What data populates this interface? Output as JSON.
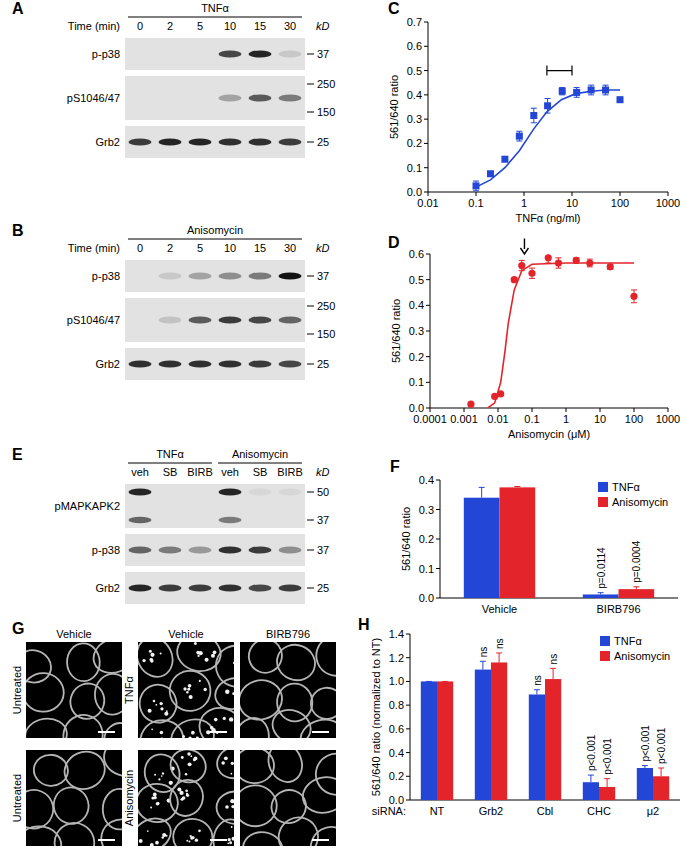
{
  "chart_data": [
    {
      "panel": "C",
      "type": "scatter",
      "x_label": "TNFα (ng/ml)",
      "y_label": "561/640 ratio",
      "log": "x",
      "grid": false,
      "xlim": [
        0.01,
        1000
      ],
      "xticks": [
        0.01,
        0.1,
        1,
        10,
        100,
        1000
      ],
      "ylim": [
        0,
        0.7
      ],
      "yticks": [
        {
          "value": 0,
          "label": "0.0"
        },
        0.1,
        0.2,
        0.3,
        0.4,
        0.5,
        0.6,
        0.7
      ],
      "series": [
        {
          "type": "scatter",
          "marker": "square",
          "color": "#2346d6",
          "x": [
            0.1,
            0.2,
            0.4,
            0.8,
            1.6,
            3.1,
            6.25,
            12.5,
            25,
            50,
            100
          ],
          "values": [
            0.025,
            0.075,
            0.135,
            0.23,
            0.315,
            0.355,
            0.415,
            0.41,
            0.42,
            0.42,
            0.38
          ],
          "errors": [
            0.02,
            0.01,
            0.01,
            0.02,
            0.03,
            0.03,
            0.015,
            0.02,
            0.02,
            0.02,
            0.01
          ]
        },
        {
          "type": "line",
          "line_style": "solid",
          "color": "#2346d6",
          "x": [
            0.1,
            0.2,
            0.4,
            0.8,
            1.6,
            3,
            6,
            12,
            25,
            50,
            100
          ],
          "values": [
            0.02,
            0.05,
            0.1,
            0.17,
            0.26,
            0.33,
            0.38,
            0.405,
            0.415,
            0.42,
            0.42
          ]
        }
      ],
      "bracket": {
        "x": [
          3,
          10
        ],
        "y": 0.5
      }
    },
    {
      "panel": "D",
      "type": "scatter",
      "x_label": "Anisomycin (μM)",
      "y_label": "561/640 ratio",
      "log": "x",
      "grid": false,
      "xlim": [
        0.0001,
        1000
      ],
      "xticks": [
        0.0001,
        0.001,
        0.01,
        0.1,
        1,
        10,
        100,
        1000
      ],
      "ylim": [
        0,
        0.6
      ],
      "yticks": [
        {
          "value": 0,
          "label": "0.0"
        },
        0.1,
        0.2,
        0.3,
        0.4,
        0.5,
        0.6
      ],
      "series": [
        {
          "type": "scatter",
          "marker": "circle",
          "color": "#e3242b",
          "x": [
            0.0016,
            0.008,
            0.012,
            0.03,
            0.05,
            0.1,
            0.3,
            0.6,
            2,
            5,
            20,
            100
          ],
          "values": [
            0.015,
            0.045,
            0.055,
            0.5,
            0.555,
            0.525,
            0.585,
            0.565,
            0.575,
            0.565,
            0.55,
            0.435
          ],
          "errors": [
            0.005,
            0.005,
            0.005,
            0.005,
            0.02,
            0.02,
            0.02,
            0.02,
            0.01,
            0.015,
            0.01,
            0.025
          ]
        },
        {
          "type": "line",
          "line_style": "solid",
          "color": "#e3242b",
          "x": [
            0.005,
            0.008,
            0.012,
            0.016,
            0.02,
            0.03,
            0.05,
            0.1,
            1,
            100
          ],
          "values": [
            0,
            0.02,
            0.1,
            0.22,
            0.33,
            0.46,
            0.535,
            0.56,
            0.565,
            0.565
          ]
        }
      ],
      "arrow": {
        "x": 0.06,
        "y": [
          0.66,
          0.6
        ]
      }
    },
    {
      "panel": "F",
      "type": "bar",
      "y_label": "561/640 ratio",
      "categories": [
        "Vehicle",
        "BIRB796"
      ],
      "ylim": [
        0,
        0.4
      ],
      "yticks": [
        {
          "value": 0,
          "label": "0.0"
        },
        0.1,
        0.2,
        0.3,
        0.4
      ],
      "legend": "top-right",
      "grid": false,
      "series": [
        {
          "name": "TNFα",
          "color": "#2346d6",
          "values": [
            0.34,
            0.012
          ],
          "errors": [
            0.035,
            0.006
          ],
          "labels": [
            null,
            "p=0.0114"
          ]
        },
        {
          "name": "Anisomycin",
          "color": "#e3242b",
          "values": [
            0.375,
            0.03
          ],
          "errors": [
            0.003,
            0.008
          ],
          "labels": [
            null,
            "p=0.0004"
          ]
        }
      ]
    },
    {
      "panel": "H",
      "type": "bar",
      "x_label": "siRNA:",
      "y_label": "561/640 ratio (normalized to NT)",
      "categories": [
        "NT",
        "Grb2",
        "Cbl",
        "CHC",
        "μ2"
      ],
      "ylim": [
        0,
        1.4
      ],
      "yticks": [
        {
          "value": 0,
          "label": "0.0"
        },
        0.2,
        0.4,
        0.6,
        0.8,
        {
          "value": 1,
          "label": "1.0"
        },
        1.2,
        1.4
      ],
      "legend": "top-right",
      "grid": false,
      "series": [
        {
          "name": "TNFα",
          "color": "#2346d6",
          "values": [
            1,
            1.1,
            0.89,
            0.15,
            0.27
          ],
          "errors": [
            0,
            0.07,
            0.04,
            0.06,
            0.02
          ],
          "labels": [
            null,
            "ns",
            "ns",
            "p<0.001",
            "p<0.001"
          ]
        },
        {
          "name": "Anisomycin",
          "color": "#e3242b",
          "values": [
            1,
            1.16,
            1.02,
            0.11,
            0.2
          ],
          "errors": [
            0,
            0.08,
            0.09,
            0.07,
            0.07
          ],
          "labels": [
            null,
            "ns",
            "ns",
            "p<0.001",
            "p<0.001"
          ]
        }
      ]
    }
  ],
  "blots": [
    {
      "panel": "A",
      "groups": [
        {
          "label": "TNFα",
          "lanes": 6
        }
      ],
      "lane_title": "Time (min)",
      "lane_labels": [
        0,
        2,
        5,
        10,
        15,
        30
      ],
      "unit": "kD",
      "rows": [
        {
          "name": "p-p38",
          "markers": [
            37
          ],
          "bands": [
            0,
            0,
            0,
            0.75,
            0.9,
            0.12
          ]
        },
        {
          "name": "pS1046/47",
          "markers": [
            250,
            150
          ],
          "bands": [
            0,
            0,
            0,
            0.3,
            0.65,
            0.5
          ]
        },
        {
          "name": "Grb2",
          "markers": [
            25
          ],
          "bands": [
            0.8,
            0.9,
            0.9,
            0.85,
            0.85,
            0.8
          ]
        }
      ]
    },
    {
      "panel": "B",
      "groups": [
        {
          "label": "Anisomycin",
          "lanes": 6
        }
      ],
      "lane_title": "Time (min)",
      "lane_labels": [
        0,
        2,
        5,
        10,
        15,
        30
      ],
      "unit": "kD",
      "rows": [
        {
          "name": "p-p38",
          "markers": [
            37
          ],
          "bands": [
            0,
            0.12,
            0.3,
            0.4,
            0.5,
            1
          ]
        },
        {
          "name": "pS1046/47",
          "markers": [
            250,
            150
          ],
          "bands": [
            0,
            0.15,
            0.65,
            0.8,
            0.75,
            0.6
          ]
        },
        {
          "name": "Grb2",
          "markers": [
            25
          ],
          "bands": [
            0.85,
            0.85,
            0.85,
            0.85,
            0.8,
            0.75
          ]
        }
      ]
    },
    {
      "panel": "E",
      "groups": [
        {
          "label": "TNFα",
          "lanes": 3
        },
        {
          "label": "Anisomycin",
          "lanes": 3
        }
      ],
      "lane_labels": [
        "veh",
        "SB",
        "BIRB",
        "veh",
        "SB",
        "BIRB"
      ],
      "unit": "kD",
      "rows": [
        {
          "name": "pMAPKAPK2",
          "markers": [
            50,
            37
          ],
          "bands": [
            0.9,
            0,
            0,
            0.9,
            0.05,
            0.05
          ],
          "bands_lower": [
            0.6,
            0,
            0,
            0.5,
            0,
            0
          ]
        },
        {
          "name": "p-p38",
          "markers": [
            37
          ],
          "bands": [
            0.6,
            0.5,
            0.35,
            0.85,
            0.8,
            0.4
          ]
        },
        {
          "name": "Grb2",
          "markers": [
            25
          ],
          "bands": [
            0.9,
            0.8,
            0.8,
            0.85,
            0.75,
            0.8
          ]
        }
      ]
    }
  ],
  "micrographs": {
    "panel": "G",
    "headers": [
      "Vehicle",
      "Vehicle",
      "BIRB796"
    ],
    "rows": [
      {
        "control": "Untreated",
        "treatment": "TNFα",
        "puncta": [
          false,
          true,
          false
        ]
      },
      {
        "control": "Untreated",
        "treatment": "Anisomycin",
        "puncta": [
          false,
          true,
          false
        ]
      }
    ]
  }
}
